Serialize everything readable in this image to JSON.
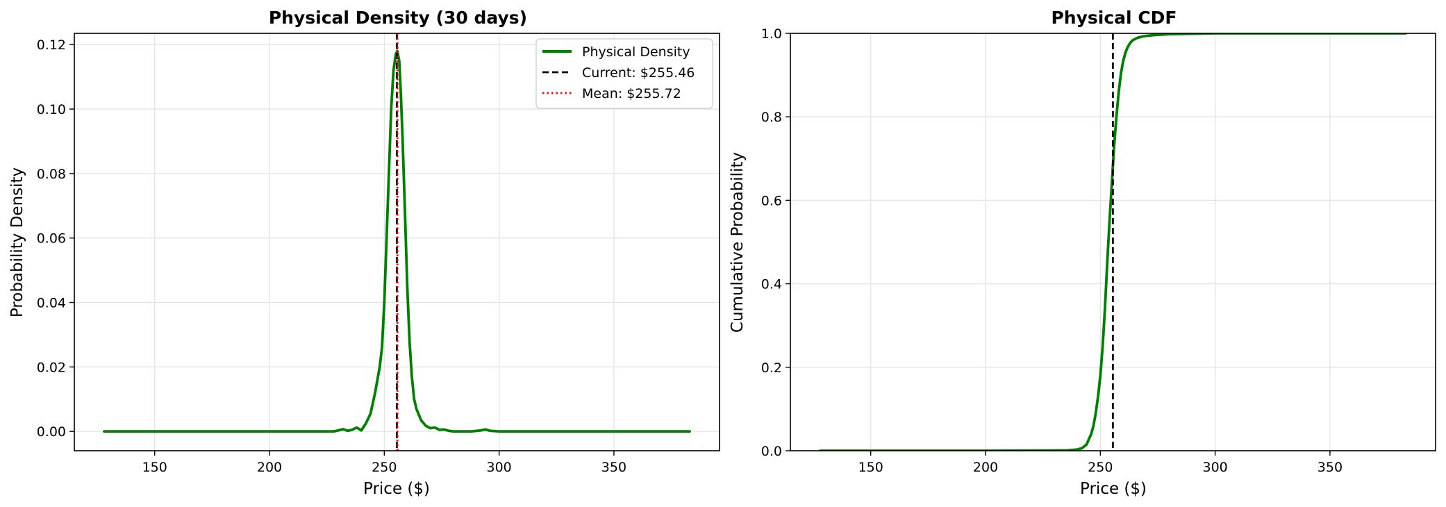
{
  "chart_data": [
    {
      "type": "line",
      "title": "Physical Density (30 days)",
      "xlabel": "Price ($)",
      "ylabel": "Probability Density",
      "xlim": [
        115,
        396
      ],
      "ylim": [
        -0.006,
        0.1235
      ],
      "xticks": [
        150,
        200,
        250,
        300,
        350
      ],
      "yticks": [
        0.0,
        0.02,
        0.04,
        0.06,
        0.08,
        0.1,
        0.12
      ],
      "ytick_labels": [
        "0.00",
        "0.02",
        "0.04",
        "0.06",
        "0.08",
        "0.10",
        "0.12"
      ],
      "grid": true,
      "legend": "top-right",
      "series": [
        {
          "name": "Physical Density",
          "color": "#008000",
          "style": "solid",
          "x": [
            128,
            200,
            228,
            230,
            232,
            234,
            236,
            238,
            240,
            242,
            244,
            246,
            248,
            249,
            250,
            251,
            252,
            253,
            254,
            255,
            255.7,
            256.5,
            257.2,
            258,
            259,
            260,
            261,
            262,
            263,
            264,
            266,
            268,
            270,
            272,
            274,
            276,
            278,
            280,
            284,
            288,
            292,
            294,
            296,
            300,
            350,
            383
          ],
          "y": [
            0.0,
            0.0,
            0.0,
            0.0003,
            0.0007,
            0.0002,
            0.0005,
            0.0012,
            0.0003,
            0.0025,
            0.0055,
            0.012,
            0.02,
            0.026,
            0.04,
            0.06,
            0.08,
            0.1,
            0.112,
            0.117,
            0.118,
            0.115,
            0.105,
            0.09,
            0.068,
            0.045,
            0.028,
            0.017,
            0.01,
            0.007,
            0.0035,
            0.0018,
            0.001,
            0.0012,
            0.0005,
            0.0006,
            0.0002,
            0.0,
            0.0,
            0.0,
            0.0003,
            0.0006,
            0.0002,
            0.0,
            0.0,
            0.0
          ]
        }
      ],
      "vlines": [
        {
          "name": "Current: $255.46",
          "x": 255.46,
          "color": "#000000",
          "style": "dashed"
        },
        {
          "name": "Mean: $255.72",
          "x": 255.72,
          "color": "#ff0000",
          "style": "dotted"
        }
      ]
    },
    {
      "type": "line",
      "title": "Physical CDF",
      "xlabel": "Price ($)",
      "ylabel": "Cumulative Probability",
      "xlim": [
        115,
        396
      ],
      "ylim": [
        0.0,
        1.0
      ],
      "xticks": [
        150,
        200,
        250,
        300,
        350
      ],
      "yticks": [
        0.0,
        0.2,
        0.4,
        0.6,
        0.8,
        1.0
      ],
      "ytick_labels": [
        "0.0",
        "0.2",
        "0.4",
        "0.6",
        "0.8",
        "1.0"
      ],
      "grid": true,
      "series": [
        {
          "color": "#008000",
          "style": "solid",
          "x": [
            128,
            200,
            228,
            236,
            240,
            242,
            244,
            246,
            247,
            248,
            249,
            250,
            251,
            252,
            253,
            254,
            255,
            256,
            257,
            258,
            259,
            260,
            261,
            262,
            263,
            264,
            266,
            268,
            270,
            274,
            280,
            300,
            383
          ],
          "y": [
            0.0,
            0.0,
            0.0005,
            0.001,
            0.003,
            0.006,
            0.015,
            0.04,
            0.06,
            0.09,
            0.13,
            0.18,
            0.25,
            0.34,
            0.45,
            0.55,
            0.64,
            0.73,
            0.8,
            0.86,
            0.905,
            0.935,
            0.955,
            0.968,
            0.977,
            0.983,
            0.989,
            0.992,
            0.994,
            0.996,
            0.998,
            1.0,
            1.0
          ]
        }
      ],
      "vlines": [
        {
          "x": 255.46,
          "color": "#000000",
          "style": "dashed"
        }
      ]
    }
  ]
}
